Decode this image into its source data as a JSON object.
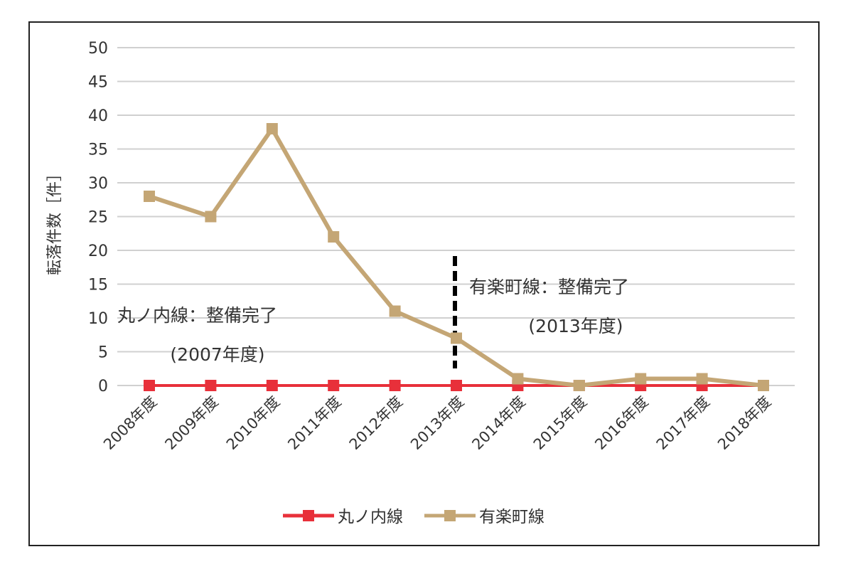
{
  "chart_data": {
    "type": "line",
    "ylabel": "転落件数［件］",
    "xlabel": "",
    "ylim": [
      0,
      50
    ],
    "yticks": [
      0,
      5,
      10,
      15,
      20,
      25,
      30,
      35,
      40,
      45,
      50
    ],
    "grid": true,
    "legend": "bottom",
    "categories": [
      "2008年度",
      "2009年度",
      "2010年度",
      "2011年度",
      "2012年度",
      "2013年度",
      "2014年度",
      "2015年度",
      "2016年度",
      "2017年度",
      "2018年度"
    ],
    "series": [
      {
        "name": "丸ノ内線",
        "color": "#e8303a",
        "marker": "square",
        "values": [
          0,
          0,
          0,
          0,
          0,
          0,
          0,
          0,
          0,
          0,
          0
        ]
      },
      {
        "name": "有楽町線",
        "color": "#c4a675",
        "marker": "square",
        "values": [
          28,
          25,
          38,
          22,
          11,
          7,
          1,
          0,
          1,
          1,
          0
        ]
      }
    ],
    "annotations": [
      {
        "line1": "丸ノ内線：整備完了",
        "line2": "(2007年度)"
      },
      {
        "line1": "有楽町線：整備完了",
        "line2": "(2013年度)",
        "marker_line": "dashed vertical at 2013年度",
        "marker_color": "#000000"
      }
    ]
  }
}
